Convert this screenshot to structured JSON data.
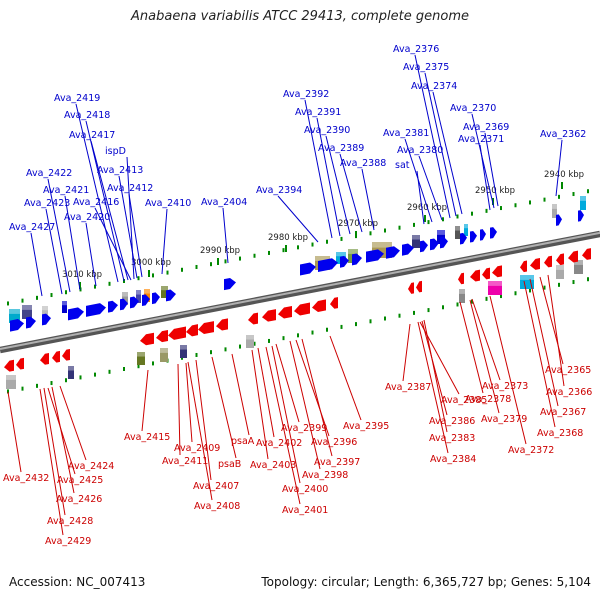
{
  "title": "Anabaena variabilis ATCC 29413, complete genome",
  "footer": {
    "accession": "Accession: NC_007413",
    "topology": "Topology: circular; Length: 6,365,727 bp; Genes: 5,104"
  },
  "colors": {
    "forward_label": "#0000cc",
    "reverse_label": "#cc0000",
    "forward_gene": "#0000ee",
    "reverse_gene": "#ee0000",
    "backbone": "#8a8a8a",
    "tick": "#008800",
    "ruler_text": "#222222"
  },
  "ruler_ticks": [
    "3010 kbp",
    "3000 kbp",
    "2990 kbp",
    "2980 kbp",
    "2970 kbp",
    "2960 kbp",
    "2950 kbp",
    "2940 kbp"
  ],
  "forward_labels": [
    "Ava_2427",
    "Ava_2423",
    "Ava_2422",
    "Ava_2421",
    "Ava_2420",
    "Ava_2419",
    "Ava_2418",
    "Ava_2417",
    "Ava_2416",
    "ispD",
    "Ava_2413",
    "Ava_2412",
    "Ava_2410",
    "Ava_2404",
    "Ava_2394",
    "Ava_2392",
    "Ava_2391",
    "Ava_2390",
    "Ava_2389",
    "Ava_2388",
    "Ava_2376",
    "Ava_2375",
    "Ava_2374",
    "Ava_2381",
    "Ava_2380",
    "sat",
    "Ava_2370",
    "Ava_2369",
    "Ava_2371",
    "Ava_2362"
  ],
  "reverse_labels": [
    "Ava_2432",
    "Ava_2425",
    "Ava_2424",
    "Ava_2426",
    "Ava_2428",
    "Ava_2429",
    "Ava_2415",
    "Ava_2409",
    "Ava_2411",
    "Ava_2407",
    "Ava_2408",
    "psaA",
    "psaB",
    "Ava_2402",
    "Ava_2403",
    "Ava_2399",
    "Ava_2400",
    "Ava_2401",
    "Ava_2396",
    "Ava_2397",
    "Ava_2398",
    "Ava_2395",
    "Ava_2387",
    "Ava_2385",
    "Ava_2386",
    "Ava_2383",
    "Ava_2384",
    "Ava_2373",
    "Ava_2378",
    "Ava_2379",
    "Ava_2372",
    "Ava_2365",
    "Ava_2366",
    "Ava_2367",
    "Ava_2368"
  ]
}
